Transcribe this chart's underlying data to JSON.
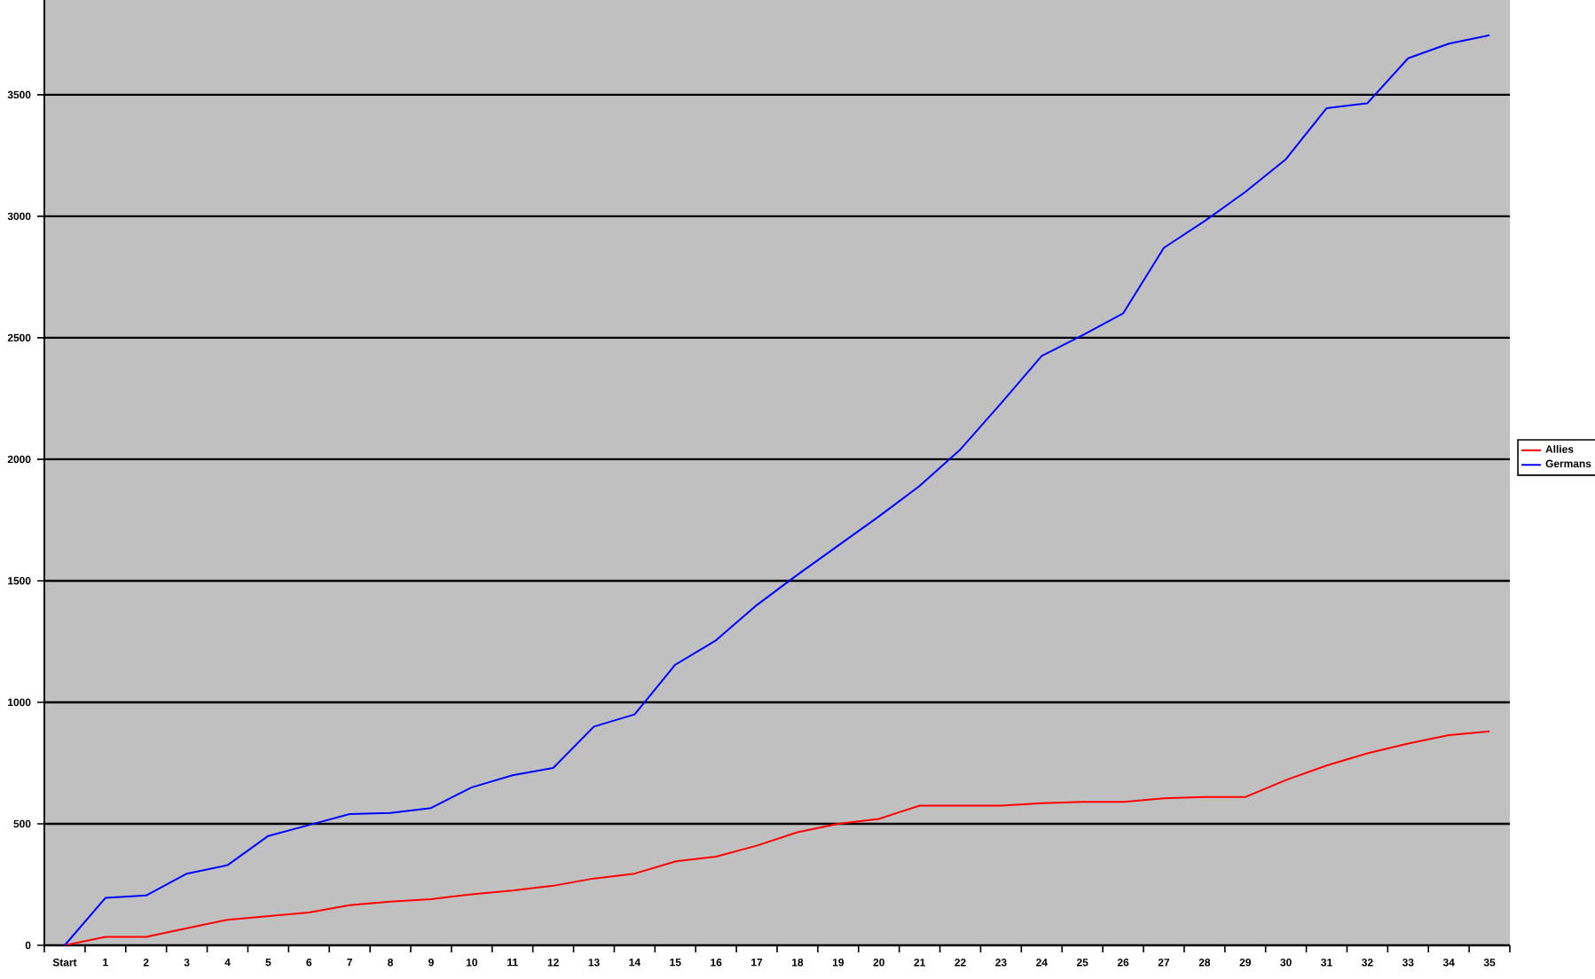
{
  "chart_data": {
    "type": "line",
    "categories": [
      "Start",
      "1",
      "2",
      "3",
      "4",
      "5",
      "6",
      "7",
      "8",
      "9",
      "10",
      "11",
      "12",
      "13",
      "14",
      "15",
      "16",
      "17",
      "18",
      "19",
      "20",
      "21",
      "22",
      "23",
      "24",
      "25",
      "26",
      "27",
      "28",
      "29",
      "30",
      "31",
      "32",
      "33",
      "34",
      "35"
    ],
    "series": [
      {
        "name": "Allies",
        "color": "#ff0000",
        "values": [
          0,
          35,
          35,
          70,
          105,
          120,
          135,
          165,
          180,
          190,
          210,
          225,
          245,
          275,
          295,
          345,
          365,
          410,
          465,
          500,
          520,
          575,
          575,
          575,
          585,
          590,
          590,
          605,
          610,
          610,
          680,
          740,
          790,
          830,
          865,
          880
        ]
      },
      {
        "name": "Germans",
        "color": "#0000ff",
        "values": [
          0,
          195,
          205,
          295,
          330,
          450,
          495,
          540,
          545,
          565,
          650,
          700,
          730,
          900,
          950,
          1155,
          1255,
          1400,
          1525,
          1645,
          1765,
          1890,
          2040,
          2230,
          2425,
          2510,
          2600,
          2870,
          2980,
          3100,
          3235,
          3445,
          3465,
          3650,
          3710,
          3745
        ]
      }
    ],
    "ylim": [
      0,
      3890
    ],
    "yticks": [
      0,
      500,
      1000,
      1500,
      2000,
      2500,
      3000,
      3500
    ],
    "grid": "y",
    "legend": "right"
  }
}
